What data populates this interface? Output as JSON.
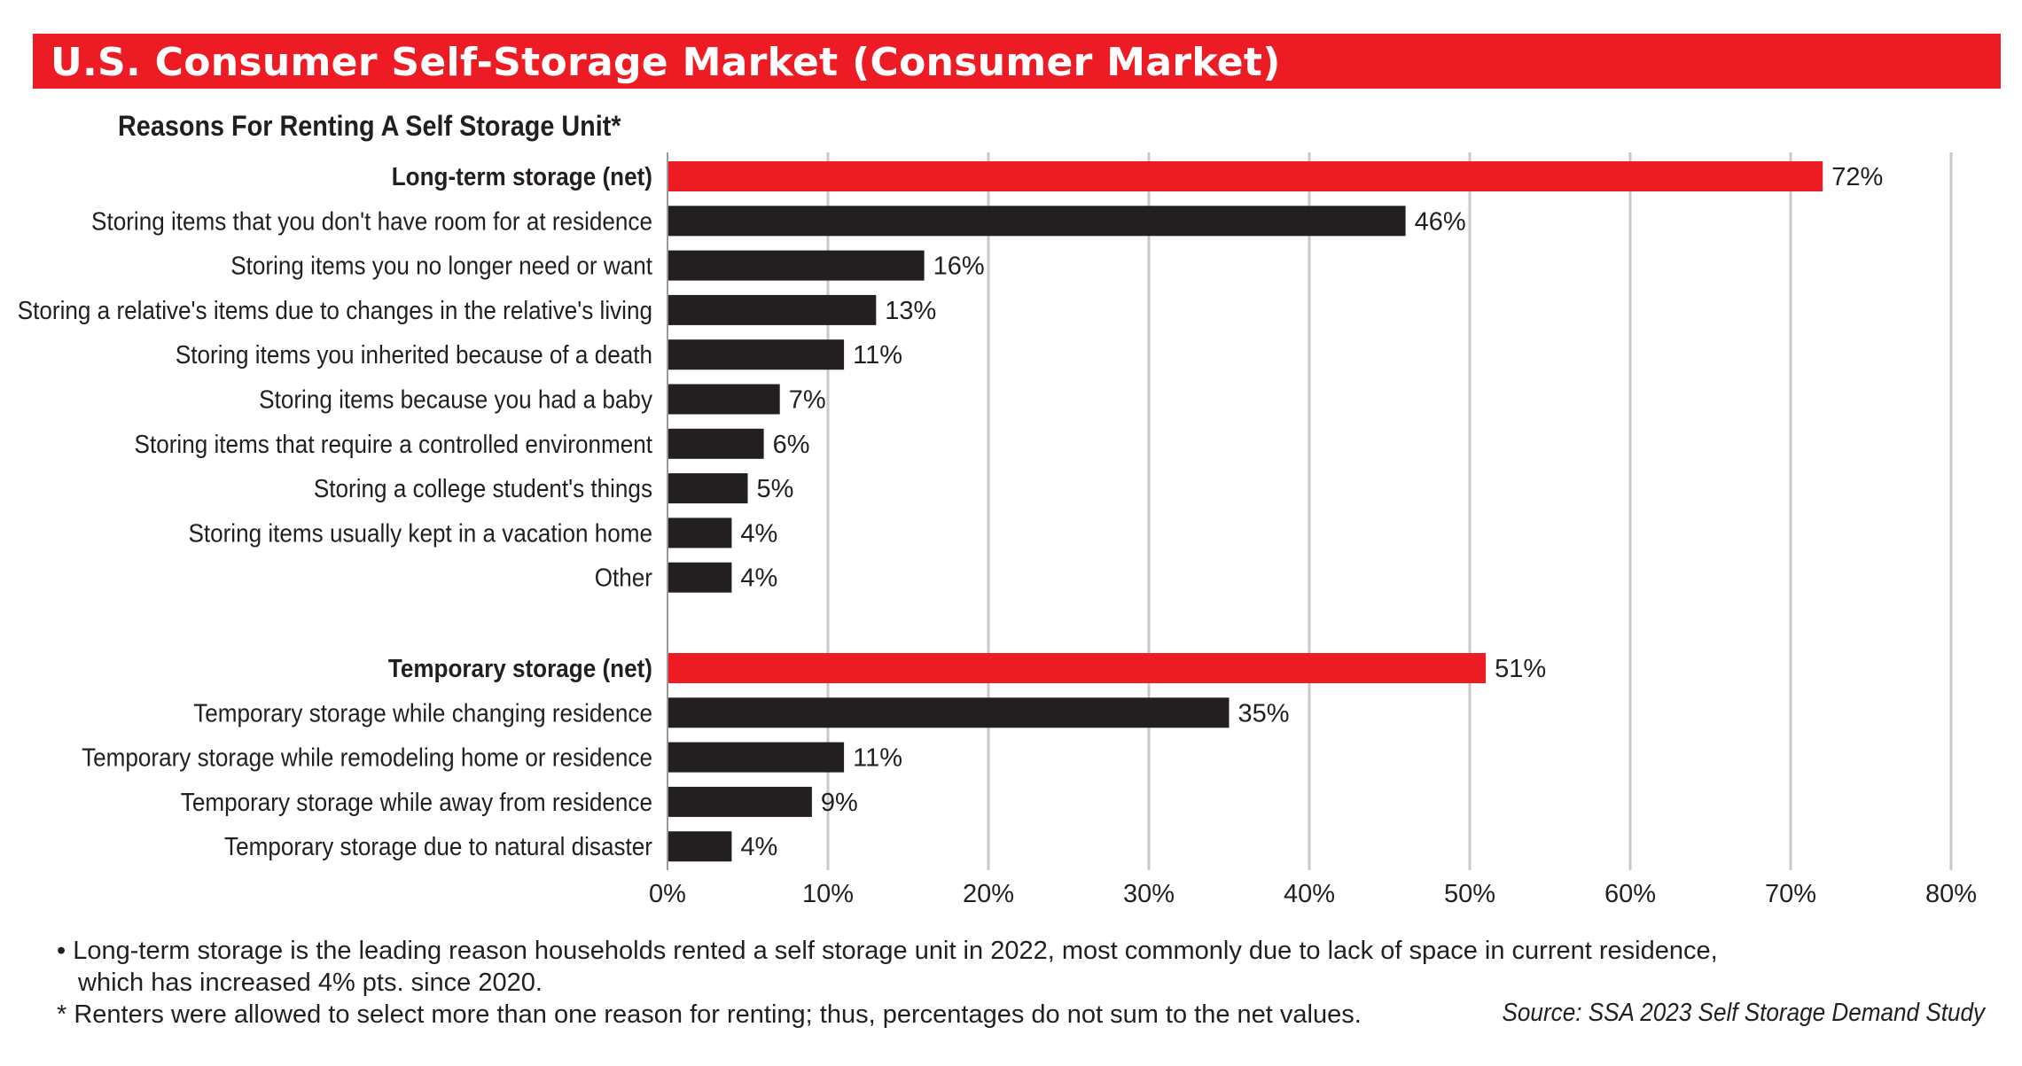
{
  "title": "U.S. Consumer Self-Storage Market (Consumer Market)",
  "colors": {
    "banner": "#ed1c24",
    "net_bar": "#ed1c24",
    "bar": "#231f20",
    "grid": "#c8c8c8"
  },
  "chart_data": {
    "type": "bar",
    "orientation": "horizontal",
    "title": "Reasons For Renting A Self Storage Unit*",
    "xlim": [
      0,
      80
    ],
    "xticks": [
      "0%",
      "10%",
      "20%",
      "30%",
      "40%",
      "50%",
      "60%",
      "70%",
      "80%"
    ],
    "grid": "vertical",
    "groups": [
      {
        "net_label": "Long-term storage (net)",
        "net_value": 72,
        "items": [
          {
            "label": "Storing items that you don't have room for at residence",
            "value": 46
          },
          {
            "label": "Storing items you no longer need or want",
            "value": 16
          },
          {
            "label": "Storing a relative's items due to changes in the relative's living",
            "value": 13
          },
          {
            "label": "Storing items you inherited because of a death",
            "value": 11
          },
          {
            "label": "Storing items because you had a baby",
            "value": 7
          },
          {
            "label": "Storing items that require a controlled environment",
            "value": 6
          },
          {
            "label": "Storing a college student's things",
            "value": 5
          },
          {
            "label": "Storing items usually kept in a vacation home",
            "value": 4
          },
          {
            "label": "Other",
            "value": 4
          }
        ]
      },
      {
        "net_label": "Temporary storage (net)",
        "net_value": 51,
        "items": [
          {
            "label": "Temporary storage while changing residence",
            "value": 35
          },
          {
            "label": "Temporary storage while remodeling home or residence",
            "value": 11
          },
          {
            "label": "Temporary storage while away from residence",
            "value": 9
          },
          {
            "label": "Temporary storage due to natural disaster",
            "value": 4
          }
        ]
      }
    ],
    "value_suffix": "%"
  },
  "notes": {
    "bullet_line1": "• Long-term storage is the leading reason households rented a self storage unit in 2022, most commonly due to lack of space in current residence,",
    "bullet_line2": "which has increased 4% pts. since 2020.",
    "footnote": "* Renters were allowed to select more than one reason for renting; thus, percentages do not sum to the net values."
  },
  "source": "Source: SSA 2023 Self Storage Demand Study"
}
